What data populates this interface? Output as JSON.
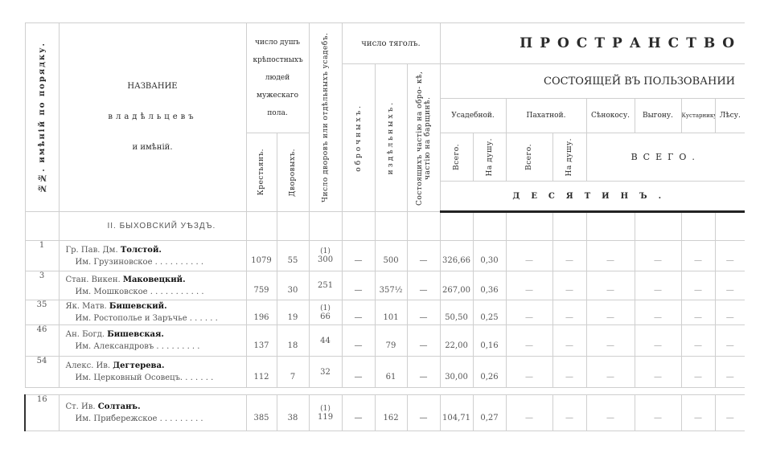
{
  "header": {
    "number_col": "№№. имѣній по порядку.",
    "name_col": [
      "НАЗВАНИЕ",
      "владѣльцевъ",
      "и имѣній."
    ],
    "souls": "число душъ крѣпостныхъ людей мужескаго пола.",
    "souls_peasants": "Крестьянъ.",
    "souls_house": "Дворовыхъ.",
    "household_count": "Число дворовъ или отдѣльныхъ усадебъ.",
    "tyagla": "число тяголъ.",
    "tyagla_obrok": "оброчныхъ.",
    "tyagla_izdel": "издѣльныхъ.",
    "tyagla_mixed": "Состоящихъ частію на обро- кѣ, частію на барщинѣ.",
    "space_title": "ПРОСТРАНСТВО",
    "space_sub": "СОСТОЯЩЕЙ ВЪ ПОЛЬЗОВАНИИ",
    "usadeb": "Усадебной.",
    "pahat": "Пахатной.",
    "senokos": "Сѣнокосу.",
    "vygon": "Выгону.",
    "kustar": "Кустарнику.",
    "les": "Лѣсу.",
    "vsego": "Всего.",
    "na_dushu": "На душу.",
    "vsego_caps": "ВСЕГО.",
    "desyatin": "ДЕСЯТИНЪ."
  },
  "district": "II. БЫХОВСКИЙ УѢЗДЪ.",
  "rows": [
    {
      "no": "1",
      "prefix": "Гр. Пав. Дм. ",
      "surname": "Толстой.",
      "estate": "Им. Грузиновское . . . . . . . . . .",
      "peasants": "1079",
      "house": "55",
      "note": "(1)",
      "households": "300",
      "obrok": "—",
      "izdel": "500",
      "mixed": "—",
      "usad_total": "326,66",
      "usad_per": "0,30",
      "rest": [
        "—",
        "—",
        "—",
        "—",
        "—",
        "—"
      ]
    },
    {
      "no": "3",
      "prefix": "Стан. Викен. ",
      "surname": "Маковецкий.",
      "estate": "Им. Мошковское . . . . . . . . . . .",
      "peasants": "759",
      "house": "30",
      "note": "",
      "households": "251",
      "obrok": "—",
      "izdel": "357½",
      "mixed": "—",
      "usad_total": "267,00",
      "usad_per": "0,36",
      "rest": [
        "—",
        "—",
        "—",
        "—",
        "—",
        "—"
      ]
    },
    {
      "no": "35",
      "prefix": "Як. Матв. ",
      "surname": "Бишевский.",
      "estate": "Им. Ростополье и Заръчье . . . . . .",
      "peasants": "196",
      "house": "19",
      "note": "(1)",
      "households": "66",
      "obrok": "—",
      "izdel": "101",
      "mixed": "—",
      "usad_total": "50,50",
      "usad_per": "0,25",
      "rest": [
        "—",
        "—",
        "—",
        "—",
        "—",
        "—"
      ]
    },
    {
      "no": "46",
      "prefix": "Ан. Богд. ",
      "surname": "Бишевская.",
      "estate": "Им. Александровъ . . . . . . . . .",
      "peasants": "137",
      "house": "18",
      "note": "",
      "households": "44",
      "obrok": "—",
      "izdel": "79",
      "mixed": "—",
      "usad_total": "22,00",
      "usad_per": "0,16",
      "rest": [
        "—",
        "—",
        "—",
        "—",
        "—",
        "—"
      ]
    },
    {
      "no": "54",
      "prefix": "Алекс. Ив. ",
      "surname": "Дегтерева.",
      "estate": "Им. Церковный Осовецъ. . . . . . .",
      "peasants": "112",
      "house": "7",
      "note": "",
      "households": "32",
      "obrok": "—",
      "izdel": "61",
      "mixed": "—",
      "usad_total": "30,00",
      "usad_per": "0,26",
      "rest": [
        "—",
        "—",
        "—",
        "—",
        "—",
        "—"
      ]
    },
    {
      "no": "16",
      "prefix": "Ст. Ив. ",
      "surname": "Солтанъ.",
      "estate": "Им. Прибережское . . . . . . . . .",
      "peasants": "385",
      "house": "38",
      "note": "(1)",
      "households": "119",
      "obrok": "—",
      "izdel": "162",
      "mixed": "—",
      "usad_total": "104,71",
      "usad_per": "0,27",
      "rest": [
        "—",
        "—",
        "—",
        "—",
        "—",
        "—"
      ]
    }
  ]
}
